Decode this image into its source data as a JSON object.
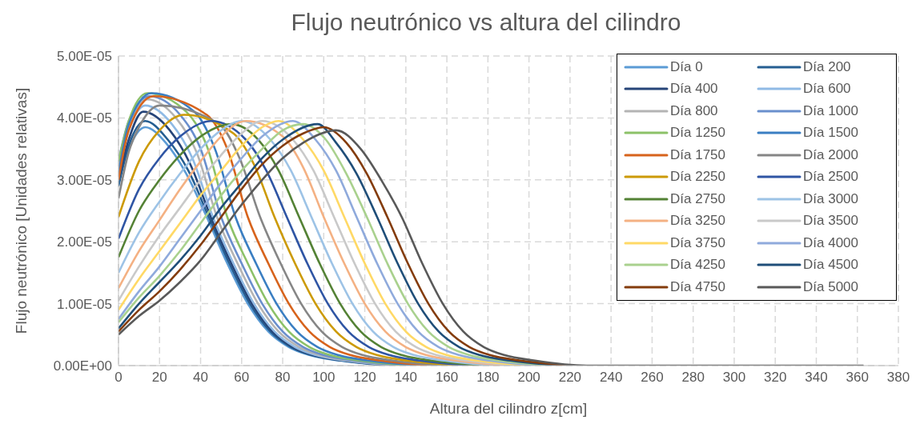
{
  "chart_data": {
    "type": "line",
    "title": "Flujo neutrónico vs altura del cilindro",
    "xlabel": "Altura del cilindro z[cm]",
    "ylabel": "Flujo neutrónico [Unidades relativas]",
    "xlim": [
      0,
      380
    ],
    "xticks": [
      0,
      20,
      40,
      60,
      80,
      100,
      120,
      140,
      160,
      180,
      200,
      220,
      240,
      260,
      280,
      300,
      320,
      340,
      360,
      380
    ],
    "ylim": [
      0,
      5e-05
    ],
    "yticks": [
      {
        "value": 0,
        "label": "0.00E+00"
      },
      {
        "value": 1e-05,
        "label": "1.00E-05"
      },
      {
        "value": 2e-05,
        "label": "2.00E-05"
      },
      {
        "value": 3e-05,
        "label": "3.00E-05"
      },
      {
        "value": 4e-05,
        "label": "4.00E-05"
      },
      {
        "value": 5e-05,
        "label": "5.00E-05"
      }
    ],
    "grid": true,
    "legend": "top right",
    "marker": "none",
    "line_style": "solid",
    "series": [
      {
        "name": "Día 0",
        "color": "#5b9bd5",
        "x": [
          0,
          5,
          13,
          23,
          33,
          43,
          53,
          63,
          73,
          83,
          93,
          108,
          133
        ],
        "values": [
          3e-05,
          3.5e-05,
          3.85e-05,
          3.6e-05,
          3.1e-05,
          2.4e-05,
          1.65e-05,
          1e-05,
          5.5e-06,
          3e-06,
          1.7e-06,
          8e-07,
          0
        ]
      },
      {
        "name": "Día 200",
        "color": "#255e91",
        "x": [
          0,
          5,
          13,
          24,
          34,
          44,
          54,
          64,
          74,
          84,
          94,
          109,
          134
        ],
        "values": [
          2.9e-05,
          3.55e-05,
          3.95e-05,
          3.65e-05,
          3.15e-05,
          2.4e-05,
          1.65e-05,
          1e-05,
          5.5e-06,
          3e-06,
          1.7e-06,
          8e-07,
          0
        ]
      },
      {
        "name": "Día 400",
        "color": "#264478",
        "x": [
          0,
          5,
          12,
          25,
          35,
          45,
          55,
          65,
          75,
          85,
          95,
          110,
          135
        ],
        "values": [
          3e-05,
          3.65e-05,
          4.1e-05,
          3.8e-05,
          3.25e-05,
          2.4e-05,
          1.65e-05,
          1e-05,
          5.5e-06,
          3e-06,
          1.7e-06,
          8e-07,
          0
        ]
      },
      {
        "name": "Día 600",
        "color": "#8fbae5",
        "x": [
          0,
          5,
          13,
          26,
          36,
          46,
          56,
          66,
          76,
          86,
          96,
          111,
          136
        ],
        "values": [
          3.2e-05,
          3.8e-05,
          4.2e-05,
          3.9e-05,
          3.35e-05,
          2.4e-05,
          1.65e-05,
          1e-05,
          5.5e-06,
          3e-06,
          1.7e-06,
          8e-07,
          0
        ]
      },
      {
        "name": "Día 800",
        "color": "#b4b4b4",
        "x": [
          0,
          5,
          14,
          28,
          38,
          48,
          58,
          68,
          78,
          88,
          98,
          113,
          138
        ],
        "values": [
          3.2e-05,
          3.85e-05,
          4.3e-05,
          4e-05,
          3.45e-05,
          2.4e-05,
          1.65e-05,
          1e-05,
          5.5e-06,
          3e-06,
          1.7e-06,
          8e-07,
          0
        ]
      },
      {
        "name": "Día 1000",
        "color": "#6a8fcd",
        "x": [
          0,
          5,
          15,
          30,
          40,
          50,
          60,
          70,
          80,
          90,
          100,
          115,
          140
        ],
        "values": [
          3.3e-05,
          3.95e-05,
          4.35e-05,
          4.05e-05,
          3.5e-05,
          2.4e-05,
          1.65e-05,
          1e-05,
          5.5e-06,
          3e-06,
          1.7e-06,
          8e-07,
          0
        ]
      },
      {
        "name": "Día 1250",
        "color": "#8cc168",
        "x": [
          0,
          5,
          14,
          33,
          43,
          53,
          63,
          73,
          83,
          93,
          103,
          118,
          143
        ],
        "values": [
          3.3e-05,
          3.95e-05,
          4.4e-05,
          4.1e-05,
          3.55e-05,
          2.4e-05,
          1.65e-05,
          1e-05,
          5.5e-06,
          3e-06,
          1.7e-06,
          8e-07,
          0
        ]
      },
      {
        "name": "Día 1500",
        "color": "#3a7ec2",
        "x": [
          0,
          5,
          16,
          37,
          47,
          57,
          67,
          77,
          87,
          97,
          107,
          122,
          147
        ],
        "values": [
          3.1e-05,
          3.9e-05,
          4.4e-05,
          4.1e-05,
          3.5e-05,
          2.4e-05,
          1.65e-05,
          1e-05,
          5.5e-06,
          3e-06,
          1.7e-06,
          8e-07,
          0
        ]
      },
      {
        "name": "Día 1750",
        "color": "#d7631c",
        "x": [
          0,
          5,
          17,
          43,
          53,
          63,
          73,
          83,
          93,
          103,
          113,
          128,
          153
        ],
        "values": [
          3e-05,
          3.8e-05,
          4.35e-05,
          4.05e-05,
          3.5e-05,
          2.4e-05,
          1.65e-05,
          1e-05,
          5.5e-06,
          3e-06,
          1.7e-06,
          8e-07,
          0
        ]
      },
      {
        "name": "Día 2000",
        "color": "#868686",
        "x": [
          0,
          5,
          10,
          20,
          49,
          59,
          69,
          79,
          89,
          99,
          109,
          119,
          134,
          159
        ],
        "values": [
          2.7e-05,
          3.45e-05,
          3.85e-05,
          4.2e-05,
          3.9e-05,
          3.35e-05,
          2.4e-05,
          1.65e-05,
          1e-05,
          5.5e-06,
          3e-06,
          1.7e-06,
          8e-07,
          0
        ]
      },
      {
        "name": "Día 2250",
        "color": "#cc9a06",
        "x": [
          0,
          10,
          20,
          32,
          56,
          66,
          76,
          86,
          96,
          106,
          116,
          126,
          141,
          166
        ],
        "values": [
          2.4e-05,
          3.3e-05,
          3.8e-05,
          4.05e-05,
          3.75e-05,
          3.25e-05,
          2.4e-05,
          1.65e-05,
          1e-05,
          5.5e-06,
          3e-06,
          1.7e-06,
          8e-07,
          0
        ]
      },
      {
        "name": "Día 2500",
        "color": "#2f55a4",
        "x": [
          0,
          10,
          20,
          30,
          45,
          62,
          72,
          82,
          92,
          102,
          112,
          122,
          132,
          147,
          172
        ],
        "values": [
          2.05e-05,
          2.85e-05,
          3.35e-05,
          3.7e-05,
          3.95e-05,
          3.65e-05,
          3.15e-05,
          2.4e-05,
          1.65e-05,
          1e-05,
          5.5e-06,
          3e-06,
          1.7e-06,
          8e-07,
          0
        ]
      },
      {
        "name": "Día 2750",
        "color": "#548235",
        "x": [
          0,
          10,
          20,
          30,
          40,
          55,
          68,
          78,
          88,
          98,
          108,
          118,
          128,
          138,
          153,
          178
        ],
        "values": [
          1.75e-05,
          2.5e-05,
          3e-05,
          3.4e-05,
          3.7e-05,
          3.9e-05,
          3.65e-05,
          3.15e-05,
          2.4e-05,
          1.65e-05,
          1e-05,
          5.5e-06,
          3e-06,
          1.7e-06,
          8e-07,
          0
        ]
      },
      {
        "name": "Día 3000",
        "color": "#9dc3e6",
        "x": [
          0,
          10,
          20,
          30,
          40,
          50,
          60,
          74,
          84,
          94,
          104,
          114,
          124,
          134,
          144,
          159,
          184
        ],
        "values": [
          1.5e-05,
          2.15e-05,
          2.65e-05,
          3.1e-05,
          3.5e-05,
          3.8e-05,
          3.95e-05,
          3.65e-05,
          3.15e-05,
          2.4e-05,
          1.65e-05,
          1e-05,
          5.5e-06,
          3e-06,
          1.7e-06,
          8e-07,
          0
        ]
      },
      {
        "name": "Día 3250",
        "color": "#f4b183",
        "x": [
          0,
          10,
          20,
          30,
          40,
          50,
          62,
          80,
          90,
          100,
          110,
          120,
          130,
          140,
          150,
          165,
          190
        ],
        "values": [
          1.25e-05,
          1.85e-05,
          2.35e-05,
          2.85e-05,
          3.3e-05,
          3.7e-05,
          3.95e-05,
          3.7e-05,
          3.2e-05,
          2.4e-05,
          1.65e-05,
          1e-05,
          5.5e-06,
          3e-06,
          1.7e-06,
          8e-07,
          0
        ]
      },
      {
        "name": "Día 3500",
        "color": "#c9c9c9",
        "x": [
          0,
          10,
          20,
          30,
          40,
          50,
          60,
          70,
          85,
          95,
          105,
          115,
          125,
          135,
          145,
          155,
          170,
          195
        ],
        "values": [
          1.05e-05,
          1.6e-05,
          2.1e-05,
          2.55e-05,
          3e-05,
          3.4e-05,
          3.75e-05,
          3.95e-05,
          3.65e-05,
          3.15e-05,
          2.4e-05,
          1.65e-05,
          1e-05,
          5.5e-06,
          3e-06,
          1.7e-06,
          8e-07,
          0
        ]
      },
      {
        "name": "Día 3750",
        "color": "#ffd966",
        "x": [
          0,
          10,
          20,
          30,
          40,
          50,
          60,
          70,
          78,
          90,
          100,
          110,
          120,
          130,
          140,
          150,
          160,
          175,
          200
        ],
        "values": [
          9e-06,
          1.4e-05,
          1.85e-05,
          2.3e-05,
          2.75e-05,
          3.15e-05,
          3.55e-05,
          3.85e-05,
          3.95e-05,
          3.65e-05,
          3.15e-05,
          2.4e-05,
          1.65e-05,
          1e-05,
          5.5e-06,
          3e-06,
          1.7e-06,
          8e-07,
          0
        ]
      },
      {
        "name": "Día 4000",
        "color": "#8faadc",
        "x": [
          0,
          10,
          20,
          30,
          40,
          50,
          60,
          70,
          85,
          96,
          106,
          116,
          126,
          136,
          146,
          156,
          166,
          181,
          206
        ],
        "values": [
          7.5e-06,
          1.2e-05,
          1.6e-05,
          2.05e-05,
          2.5e-05,
          2.95e-05,
          3.35e-05,
          3.7e-05,
          3.95e-05,
          3.65e-05,
          3.15e-05,
          2.4e-05,
          1.65e-05,
          1e-05,
          5.5e-06,
          3e-06,
          1.7e-06,
          8e-07,
          0
        ]
      },
      {
        "name": "Día 4250",
        "color": "#a9d18e",
        "x": [
          0,
          10,
          20,
          30,
          40,
          50,
          60,
          70,
          80,
          90,
          101,
          111,
          121,
          131,
          141,
          151,
          161,
          171,
          186,
          211
        ],
        "values": [
          7e-06,
          1.1e-05,
          1.45e-05,
          1.85e-05,
          2.3e-05,
          2.75e-05,
          3.15e-05,
          3.5e-05,
          3.8e-05,
          3.9e-05,
          3.65e-05,
          3.1e-05,
          2.4e-05,
          1.65e-05,
          1e-05,
          5.5e-06,
          3e-06,
          1.7e-06,
          8e-07,
          0
        ]
      },
      {
        "name": "Día 4500",
        "color": "#1f4e79",
        "x": [
          0,
          10,
          20,
          30,
          40,
          50,
          60,
          70,
          80,
          97,
          106,
          116,
          126,
          136,
          146,
          156,
          166,
          176,
          191,
          216
        ],
        "values": [
          6e-06,
          1e-05,
          1.35e-05,
          1.7e-05,
          2.1e-05,
          2.55e-05,
          2.95e-05,
          3.35e-05,
          3.65e-05,
          3.9e-05,
          3.6e-05,
          3.1e-05,
          2.4e-05,
          1.65e-05,
          1e-05,
          5.5e-06,
          3e-06,
          1.7e-06,
          8e-07,
          0
        ]
      },
      {
        "name": "Día 4750",
        "color": "#843c0c",
        "x": [
          0,
          10,
          20,
          30,
          40,
          50,
          60,
          70,
          80,
          90,
          100,
          111,
          121,
          131,
          141,
          151,
          161,
          171,
          181,
          196,
          221
        ],
        "values": [
          5.5e-06,
          9e-06,
          1.2e-05,
          1.55e-05,
          1.95e-05,
          2.4e-05,
          2.85e-05,
          3.25e-05,
          3.55e-05,
          3.75e-05,
          3.85e-05,
          3.6e-05,
          3.1e-05,
          2.4e-05,
          1.65e-05,
          1e-05,
          5.5e-06,
          3e-06,
          1.7e-06,
          8e-07,
          0
        ]
      },
      {
        "name": "Día 5000",
        "color": "#595959",
        "x": [
          0,
          10,
          20,
          30,
          40,
          50,
          60,
          70,
          80,
          90,
          106,
          118,
          128,
          138,
          148,
          158,
          168,
          178,
          188,
          203,
          228,
          363
        ],
        "values": [
          5e-06,
          8e-06,
          1.05e-05,
          1.35e-05,
          1.7e-05,
          2.15e-05,
          2.6e-05,
          3e-05,
          3.35e-05,
          3.6e-05,
          3.8e-05,
          3.5e-05,
          3e-05,
          2.4e-05,
          1.65e-05,
          1e-05,
          5.5e-06,
          3e-06,
          1.7e-06,
          8e-07,
          0,
          0
        ]
      }
    ]
  }
}
